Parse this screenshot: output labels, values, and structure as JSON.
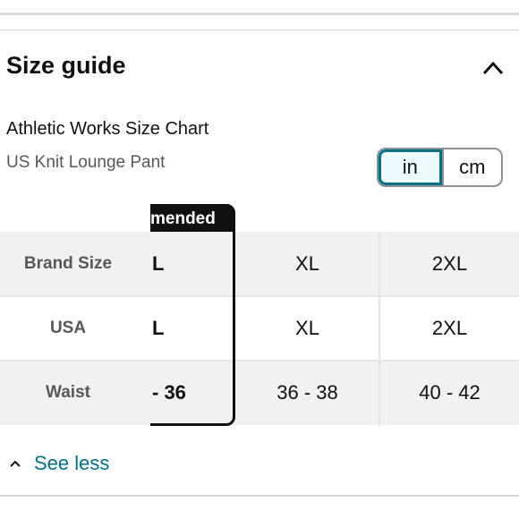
{
  "header": {
    "title": "Size guide"
  },
  "chart": {
    "title": "Athletic Works Size Chart",
    "subtitle": "US Knit Lounge Pant"
  },
  "units": {
    "in": "in",
    "cm": "cm",
    "selected": "in"
  },
  "table": {
    "recommended_header": "mended",
    "rows": [
      {
        "label": "Brand Size",
        "recommended": "L",
        "cells": [
          "XL",
          "2XL"
        ]
      },
      {
        "label": "USA",
        "recommended": "L",
        "cells": [
          "XL",
          "2XL"
        ]
      },
      {
        "label": "Waist",
        "recommended": "- 36",
        "cells": [
          "36 - 38",
          "40 - 42"
        ]
      }
    ]
  },
  "footer": {
    "see_less": "See less"
  },
  "colors": {
    "accent": "#007185",
    "text": "#0f1111",
    "muted": "#565959"
  }
}
